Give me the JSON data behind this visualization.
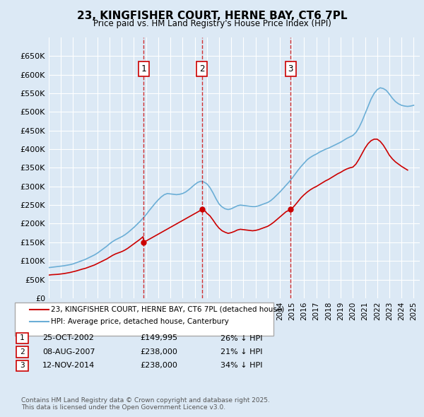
{
  "title": "23, KINGFISHER COURT, HERNE BAY, CT6 7PL",
  "subtitle": "Price paid vs. HM Land Registry's House Price Index (HPI)",
  "ylabel": "",
  "ylim": [
    0,
    700000
  ],
  "yticks": [
    0,
    50000,
    100000,
    150000,
    200000,
    250000,
    300000,
    350000,
    400000,
    450000,
    500000,
    550000,
    600000,
    650000
  ],
  "ytick_labels": [
    "£0",
    "£50K",
    "£100K",
    "£150K",
    "£200K",
    "£250K",
    "£300K",
    "£350K",
    "£400K",
    "£450K",
    "£500K",
    "£550K",
    "£600K",
    "£650K"
  ],
  "xlim_start": 1995.0,
  "xlim_end": 2025.5,
  "background_color": "#dce9f5",
  "plot_bg_color": "#dce9f5",
  "grid_color": "#ffffff",
  "line_color_hpi": "#6baed6",
  "line_color_property": "#cc0000",
  "sale_dates": [
    2002.81,
    2007.6,
    2014.87
  ],
  "sale_prices": [
    149995,
    238000,
    238000
  ],
  "sale_labels": [
    "1",
    "2",
    "3"
  ],
  "legend_property": "23, KINGFISHER COURT, HERNE BAY, CT6 7PL (detached house)",
  "legend_hpi": "HPI: Average price, detached house, Canterbury",
  "transactions": [
    {
      "num": "1",
      "date": "25-OCT-2002",
      "price": "£149,995",
      "hpi": "26% ↓ HPI"
    },
    {
      "num": "2",
      "date": "08-AUG-2007",
      "price": "£238,000",
      "hpi": "21% ↓ HPI"
    },
    {
      "num": "3",
      "date": "12-NOV-2014",
      "price": "£238,000",
      "hpi": "34% ↓ HPI"
    }
  ],
  "footer": "Contains HM Land Registry data © Crown copyright and database right 2025.\nThis data is licensed under the Open Government Licence v3.0.",
  "hpi_x": [
    1995.0,
    1995.25,
    1995.5,
    1995.75,
    1996.0,
    1996.25,
    1996.5,
    1996.75,
    1997.0,
    1997.25,
    1997.5,
    1997.75,
    1998.0,
    1998.25,
    1998.5,
    1998.75,
    1999.0,
    1999.25,
    1999.5,
    1999.75,
    2000.0,
    2000.25,
    2000.5,
    2000.75,
    2001.0,
    2001.25,
    2001.5,
    2001.75,
    2002.0,
    2002.25,
    2002.5,
    2002.75,
    2003.0,
    2003.25,
    2003.5,
    2003.75,
    2004.0,
    2004.25,
    2004.5,
    2004.75,
    2005.0,
    2005.25,
    2005.5,
    2005.75,
    2006.0,
    2006.25,
    2006.5,
    2006.75,
    2007.0,
    2007.25,
    2007.5,
    2007.75,
    2008.0,
    2008.25,
    2008.5,
    2008.75,
    2009.0,
    2009.25,
    2009.5,
    2009.75,
    2010.0,
    2010.25,
    2010.5,
    2010.75,
    2011.0,
    2011.25,
    2011.5,
    2011.75,
    2012.0,
    2012.25,
    2012.5,
    2012.75,
    2013.0,
    2013.25,
    2013.5,
    2013.75,
    2014.0,
    2014.25,
    2014.5,
    2014.75,
    2015.0,
    2015.25,
    2015.5,
    2015.75,
    2016.0,
    2016.25,
    2016.5,
    2016.75,
    2017.0,
    2017.25,
    2017.5,
    2017.75,
    2018.0,
    2018.25,
    2018.5,
    2018.75,
    2019.0,
    2019.25,
    2019.5,
    2019.75,
    2020.0,
    2020.25,
    2020.5,
    2020.75,
    2021.0,
    2021.25,
    2021.5,
    2021.75,
    2022.0,
    2022.25,
    2022.5,
    2022.75,
    2023.0,
    2023.25,
    2023.5,
    2023.75,
    2024.0,
    2024.25,
    2024.5,
    2024.75,
    2025.0
  ],
  "hpi_y": [
    82000,
    83000,
    84000,
    85000,
    86000,
    87000,
    88500,
    90000,
    92000,
    95000,
    98000,
    101000,
    104000,
    108000,
    112000,
    116000,
    121000,
    127000,
    133000,
    139000,
    146000,
    152000,
    157000,
    161000,
    165000,
    170000,
    176000,
    183000,
    190000,
    198000,
    206000,
    215000,
    224000,
    235000,
    245000,
    255000,
    264000,
    272000,
    278000,
    281000,
    280000,
    279000,
    278000,
    279000,
    281000,
    285000,
    291000,
    298000,
    305000,
    311000,
    314000,
    312000,
    307000,
    297000,
    283000,
    267000,
    253000,
    245000,
    240000,
    238000,
    240000,
    244000,
    248000,
    250000,
    249000,
    248000,
    247000,
    246000,
    246000,
    248000,
    251000,
    254000,
    257000,
    262000,
    269000,
    277000,
    285000,
    294000,
    303000,
    312000,
    322000,
    333000,
    344000,
    354000,
    363000,
    372000,
    378000,
    383000,
    387000,
    392000,
    396000,
    400000,
    403000,
    407000,
    411000,
    415000,
    419000,
    424000,
    429000,
    433000,
    437000,
    445000,
    458000,
    475000,
    495000,
    515000,
    535000,
    550000,
    560000,
    565000,
    563000,
    558000,
    548000,
    537000,
    528000,
    522000,
    518000,
    516000,
    515000,
    516000,
    518000
  ],
  "prop_x": [
    1995.0,
    1995.25,
    1995.5,
    1995.75,
    1996.0,
    1996.25,
    1996.5,
    1996.75,
    1997.0,
    1997.25,
    1997.5,
    1997.75,
    1998.0,
    1998.25,
    1998.5,
    1998.75,
    1999.0,
    1999.25,
    1999.5,
    1999.75,
    2000.0,
    2000.25,
    2000.5,
    2000.75,
    2001.0,
    2001.25,
    2001.5,
    2001.75,
    2002.0,
    2002.25,
    2002.5,
    2002.75,
    2002.81,
    2007.6,
    2007.85,
    2008.0,
    2008.25,
    2008.5,
    2008.75,
    2009.0,
    2009.25,
    2009.5,
    2009.75,
    2010.0,
    2010.25,
    2010.5,
    2010.75,
    2011.0,
    2011.25,
    2011.5,
    2011.75,
    2012.0,
    2012.25,
    2012.5,
    2012.75,
    2013.0,
    2013.25,
    2013.5,
    2013.75,
    2014.0,
    2014.25,
    2014.5,
    2014.75,
    2014.87,
    2015.0,
    2015.25,
    2015.5,
    2015.75,
    2016.0,
    2016.25,
    2016.5,
    2016.75,
    2017.0,
    2017.25,
    2017.5,
    2017.75,
    2018.0,
    2018.25,
    2018.5,
    2018.75,
    2019.0,
    2019.25,
    2019.5,
    2019.75,
    2020.0,
    2020.25,
    2020.5,
    2020.75,
    2021.0,
    2021.25,
    2021.5,
    2021.75,
    2022.0,
    2022.25,
    2022.5,
    2022.75,
    2023.0,
    2023.25,
    2023.5,
    2023.75,
    2024.0,
    2024.25,
    2024.5
  ],
  "prop_y": [
    62000,
    63000,
    63500,
    64000,
    65000,
    66000,
    67500,
    69000,
    71000,
    73000,
    75500,
    78000,
    80000,
    83000,
    86000,
    89000,
    93000,
    97000,
    101000,
    105000,
    110000,
    115000,
    119000,
    122000,
    125000,
    129000,
    134000,
    140000,
    146000,
    152000,
    158000,
    165000,
    149995,
    238000,
    234000,
    228000,
    221000,
    210000,
    198000,
    188000,
    181000,
    177000,
    174000,
    176000,
    179000,
    183000,
    185000,
    184000,
    183000,
    182000,
    181000,
    182000,
    184000,
    187000,
    190000,
    193000,
    198000,
    204000,
    211000,
    218000,
    225000,
    232000,
    236000,
    238000,
    241000,
    250000,
    260000,
    270000,
    278000,
    285000,
    291000,
    296000,
    300000,
    305000,
    310000,
    315000,
    319000,
    324000,
    329000,
    334000,
    338000,
    343000,
    347000,
    350000,
    352000,
    360000,
    373000,
    388000,
    403000,
    415000,
    423000,
    427000,
    427000,
    421000,
    411000,
    398000,
    384000,
    374000,
    366000,
    360000,
    354000,
    349000,
    344000
  ]
}
